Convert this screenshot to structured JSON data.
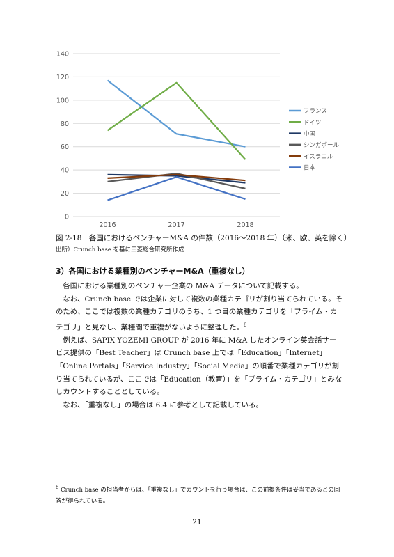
{
  "chart_data": {
    "type": "line",
    "x": [
      "2016",
      "2017",
      "2018"
    ],
    "ylim": [
      0,
      140
    ],
    "yticks": [
      0,
      20,
      40,
      60,
      80,
      100,
      120,
      140
    ],
    "grid": true,
    "legend": "right",
    "series": [
      {
        "name": "フランス",
        "color": "#5b9bd5",
        "values": [
          117,
          71,
          60
        ]
      },
      {
        "name": "ドイツ",
        "color": "#70ad47",
        "values": [
          74,
          115,
          49
        ]
      },
      {
        "name": "中国",
        "color": "#1f3864",
        "values": [
          36,
          35,
          29
        ]
      },
      {
        "name": "シンガポール",
        "color": "#595959",
        "values": [
          30,
          37,
          24
        ]
      },
      {
        "name": "イスラエル",
        "color": "#843c0c",
        "values": [
          33,
          36,
          31
        ]
      },
      {
        "name": "日本",
        "color": "#4472c4",
        "values": [
          14,
          34,
          15
        ]
      }
    ]
  },
  "caption": "図 2-18　各国におけるベンチャーM&A の件数（2016～2018 年）（米、欧、英を除く）",
  "source": "出所）Crunch base を基に三菱総合研究所作成",
  "section_heading": "3）各国における業種別のベンチャーM&A（重複なし）",
  "paragraphs": [
    "各国における業種別のベンチャー企業の M&A データについて記載する。",
    "なお、Crunch base では企業に対して複数の業種カテゴリが割り当てられている。そのため、ここでは複数の業種カテゴリのうち、1 つ目の業種カテゴリを「プライム・カテゴリ」と見なし、業種間で重複がないように整理した。",
    "例えば、SAPIX YOZEMI GROUP が 2016 年に M&A したオンライン英会話サービス提供の「Best Teacher」は Crunch base 上では「Education」「Internet」「Online Portals」「Service Industry」「Social Media」の順番で業種カテゴリが割り当てられているが、ここでは「Education（教育）」を「プライム・カテゴリ」とみなしカウントすることとしている。",
    "なお、「重複なし」の場合は 6.4 に参考として記載している。"
  ],
  "footnote_ref": "8",
  "footnote": "Crunch base の担当者からは、「重複なし」でカウントを行う場合は、この前提条件は妥当であるとの回答が得られている。",
  "page_number": "21"
}
